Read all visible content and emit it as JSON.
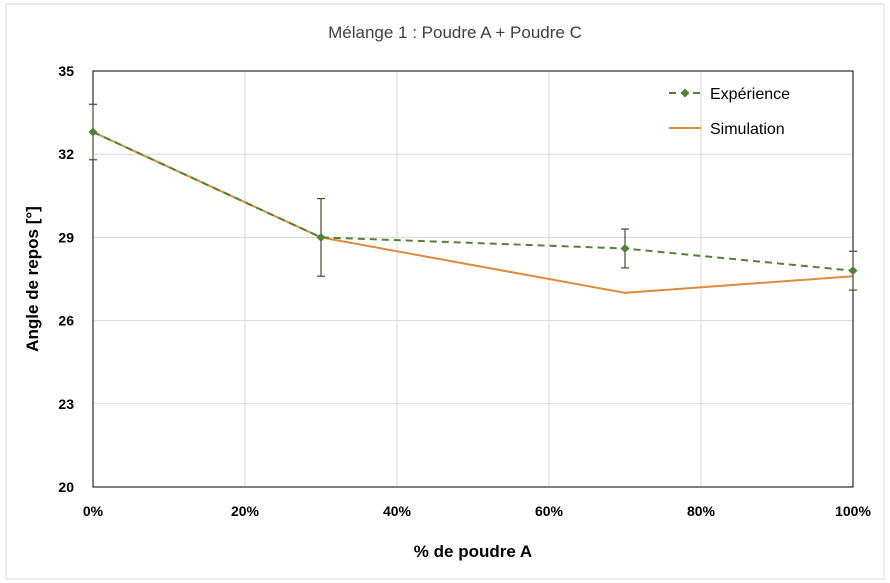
{
  "chart_data": {
    "type": "line",
    "title": "Mélange 1 : Poudre A + Poudre C",
    "xlabel": "% de poudre A",
    "ylabel": "Angle de repos [°]",
    "xlim": [
      0,
      100
    ],
    "ylim": [
      20,
      35
    ],
    "x_ticks": [
      0,
      20,
      40,
      60,
      80,
      100
    ],
    "x_tick_labels": [
      "0%",
      "20%",
      "40%",
      "60%",
      "80%",
      "100%"
    ],
    "y_ticks": [
      20,
      23,
      26,
      29,
      32,
      35
    ],
    "y_tick_labels": [
      "20",
      "23",
      "26",
      "29",
      "32",
      "35"
    ],
    "grid": true,
    "legend_position": "top-right",
    "series": [
      {
        "name": "Expérience",
        "color": "#548235",
        "style": "dashed-with-diamond-markers",
        "x": [
          0,
          30,
          70,
          100
        ],
        "y": [
          32.8,
          29.0,
          28.6,
          27.8
        ],
        "error": [
          1.0,
          1.4,
          0.7,
          0.7
        ]
      },
      {
        "name": "Simulation",
        "color": "#e08a3c",
        "style": "solid",
        "x": [
          0,
          30,
          70,
          100
        ],
        "y": [
          32.8,
          29.0,
          27.0,
          27.6
        ]
      }
    ]
  }
}
